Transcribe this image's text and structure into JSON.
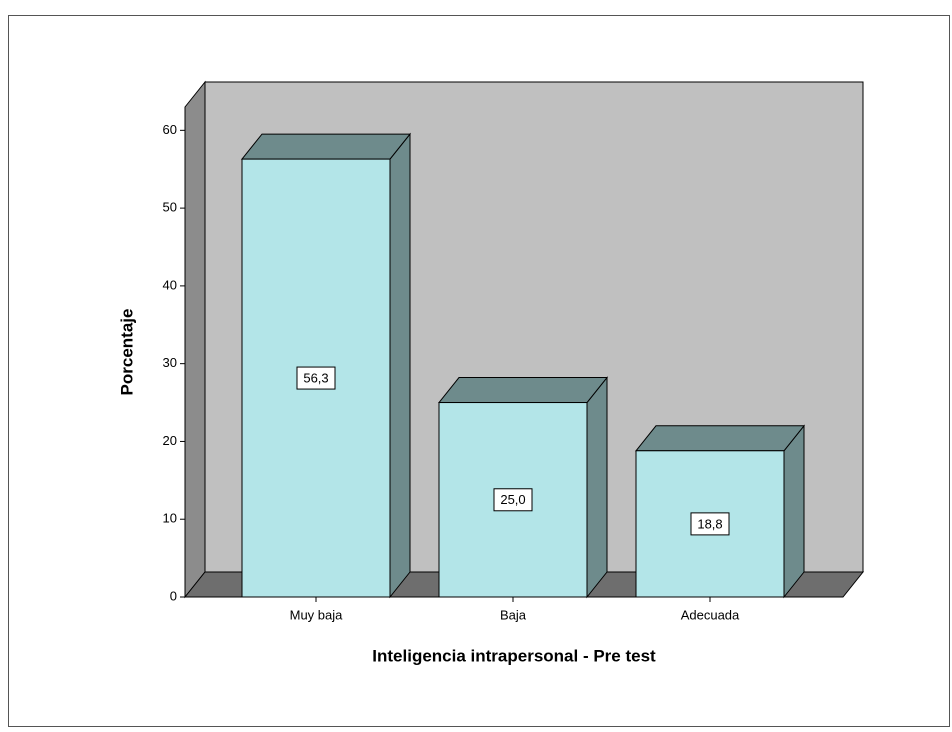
{
  "chart_data": {
    "type": "bar3d",
    "x_label": "Inteligencia intrapersonal - Pre test",
    "y_label": "Porcentaje",
    "categories": [
      "Muy baja",
      "Baja",
      "Adecuada"
    ],
    "values": [
      56.3,
      25.0,
      18.8
    ],
    "value_labels": [
      "56,3",
      "25,0",
      "18,8"
    ],
    "color": "#b3e5e8",
    "ylim": [
      0,
      63
    ],
    "yticks": [
      0,
      10,
      20,
      30,
      40,
      50,
      60
    ]
  }
}
